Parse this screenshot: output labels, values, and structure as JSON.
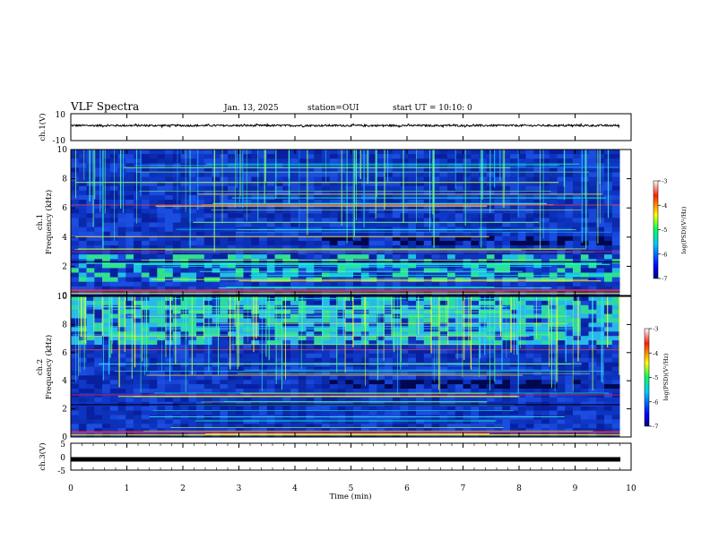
{
  "header": {
    "title": "VLF Spectra",
    "date": "Jan. 13, 2025",
    "station": "station=OUI",
    "start": "start UT = 10:10: 0"
  },
  "chart_data": [
    {
      "type": "line",
      "panel": "ch1-waveform",
      "ylabel": "ch.1(V)",
      "ylim": [
        -10,
        10
      ],
      "y_ticks": [
        "10",
        "-10"
      ],
      "xlim": [
        0,
        10
      ],
      "baseline_value": 1.2,
      "spread": 1.4
    },
    {
      "type": "heatmap",
      "panel": "ch1-spectrogram",
      "ylabel_top": "ch.1",
      "ylabel": "Frequency (kHz)",
      "ylim": [
        0,
        10
      ],
      "y_ticks": [
        "0",
        "2",
        "4",
        "6",
        "8",
        "10"
      ],
      "xlim": [
        0,
        9.8
      ],
      "colorbar": {
        "label": "log(PSD)(V²/Hz)",
        "range": [
          -7,
          -3
        ],
        "ticks": [
          "-3",
          "-4",
          "-5",
          "-6",
          "-7"
        ]
      }
    },
    {
      "type": "heatmap",
      "panel": "ch2-spectrogram",
      "ylabel_top": "ch.2",
      "ylabel": "Frequency (kHz)",
      "ylim": [
        0,
        10
      ],
      "y_ticks": [
        "0",
        "2",
        "4",
        "6",
        "8",
        "10"
      ],
      "xlim": [
        0,
        9.8
      ],
      "colorbar": {
        "label": "log(PSD)(V²/Hz)",
        "range": [
          -7,
          -3
        ],
        "ticks": [
          "-3",
          "-4",
          "-5",
          "-6",
          "-7"
        ]
      }
    },
    {
      "type": "line",
      "panel": "ch3-waveform",
      "ylabel": "ch.3(V)",
      "ylim": [
        -5,
        5
      ],
      "y_ticks": [
        "5",
        "0",
        "-5"
      ],
      "xlim": [
        0,
        10
      ],
      "baseline_value": -1.0
    }
  ],
  "x_axis": {
    "label": "Time (min)",
    "range": [
      0,
      10
    ],
    "ticks": [
      "0",
      "1",
      "2",
      "3",
      "4",
      "5",
      "6",
      "7",
      "8",
      "9",
      "10"
    ]
  }
}
